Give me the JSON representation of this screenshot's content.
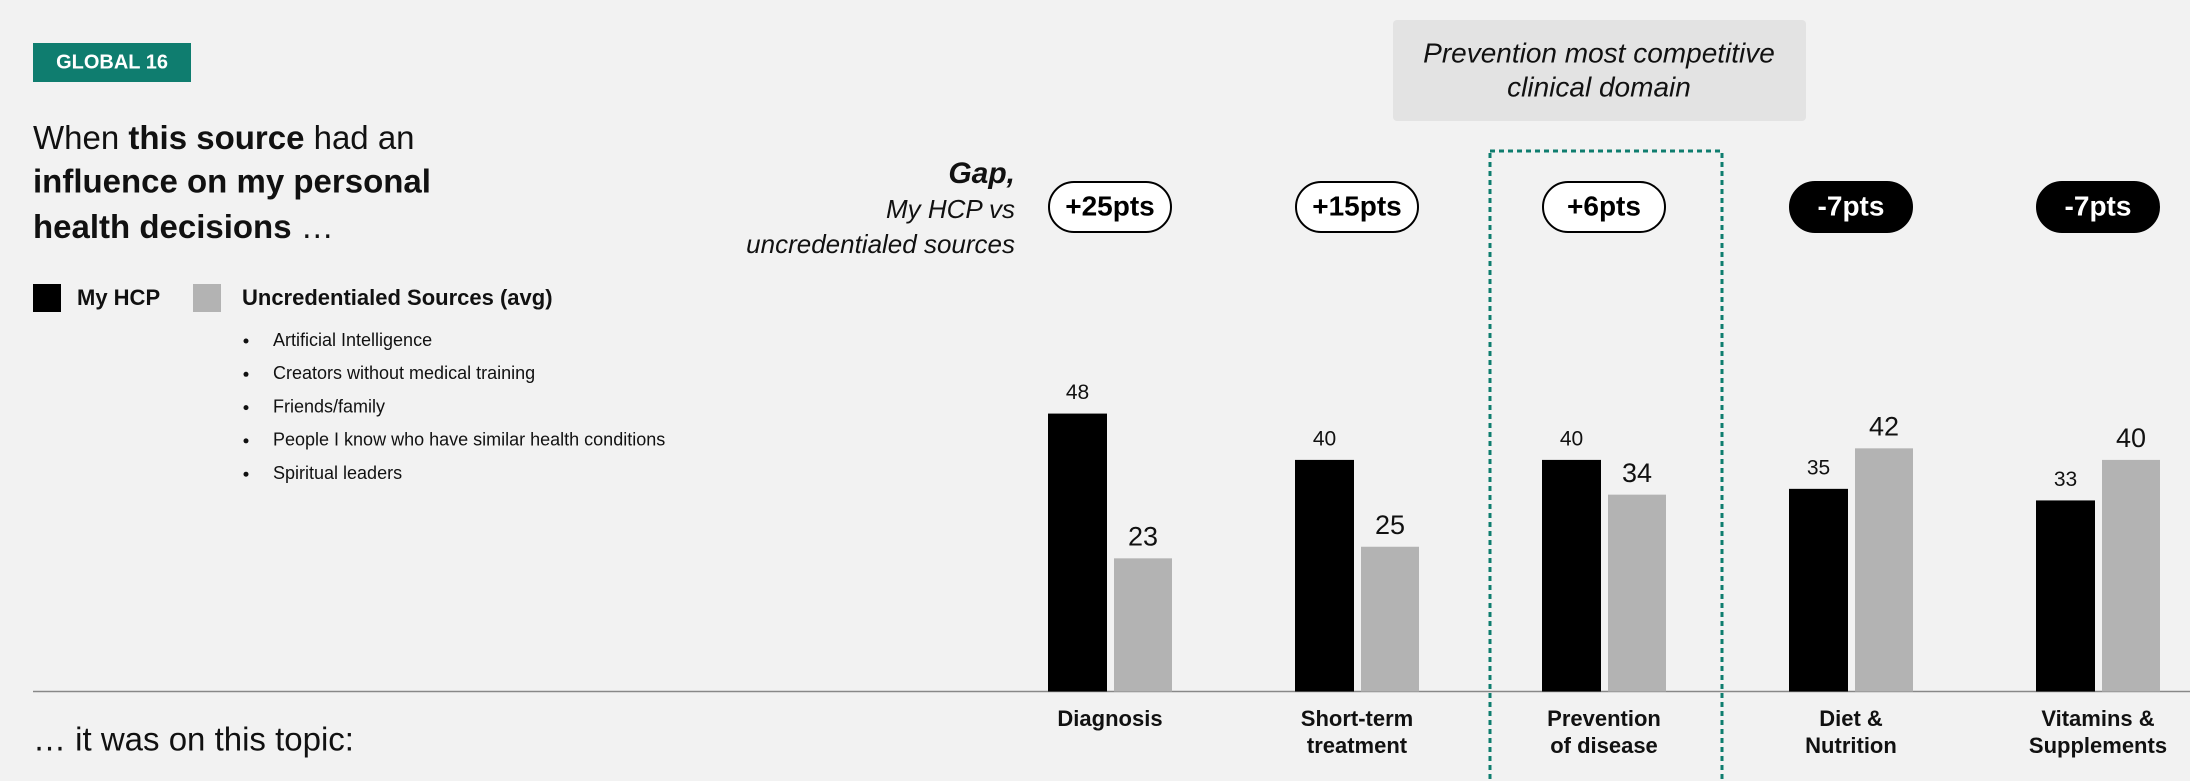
{
  "badge": "GLOBAL 16",
  "heading": [
    "When ",
    "this source",
    " had an",
    "influence on my personal",
    "health decisions",
    " …"
  ],
  "legend_sources": [
    "Artificial Intelligence",
    "Creators without medical training",
    "Friends/family",
    "People I know who have similar health conditions",
    "Spiritual leaders"
  ],
  "footer": "… it was on this topic:",
  "callout": [
    "Prevention most competitive",
    "clinical domain"
  ],
  "chart_data": {
    "type": "bar",
    "gap_title": "Gap,",
    "gap_subtitle": [
      "My HCP vs",
      "uncredentialed sources"
    ],
    "categories": [
      "Diagnosis",
      "Short-term\ntreatment",
      "Prevention\nof disease",
      "Diet &\nNutrition",
      "Vitamins &\nSupplements"
    ],
    "series": [
      {
        "name": "My HCP",
        "color": "#000000",
        "values": [
          48,
          40,
          40,
          35,
          33
        ]
      },
      {
        "name": "Uncredentialed Sources (avg)",
        "color": "#b3b3b3",
        "values": [
          23,
          25,
          34,
          42,
          40
        ]
      }
    ],
    "gap_labels": [
      "+25pts",
      "+15pts",
      "+6pts",
      "-7pts",
      "-7pts"
    ],
    "highlight_category": 2,
    "ylim": [
      0,
      50
    ]
  }
}
